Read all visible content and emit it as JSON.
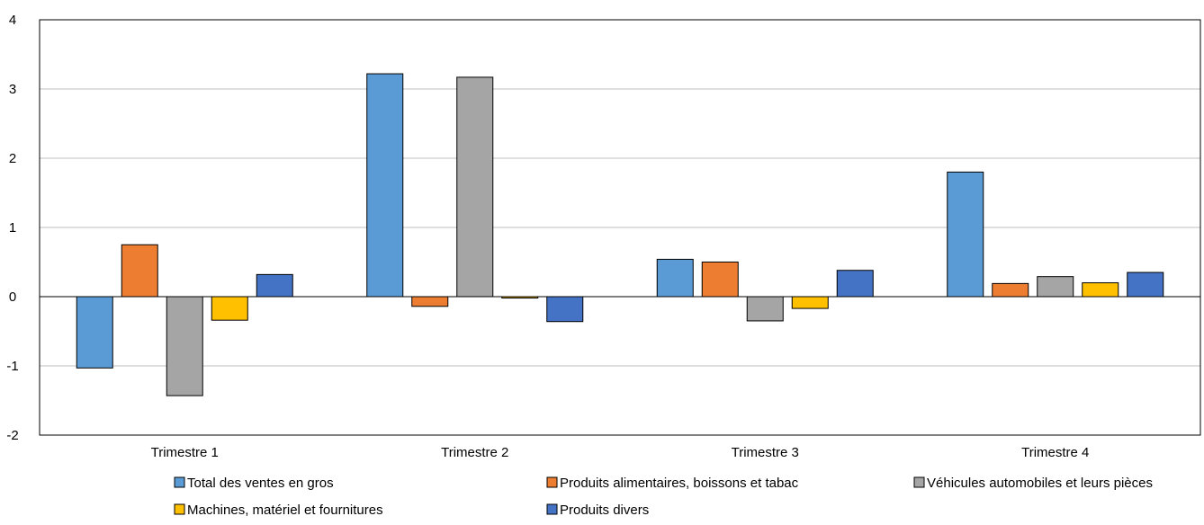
{
  "chart_data": {
    "type": "bar",
    "title": "",
    "xlabel": "",
    "ylabel": "",
    "ylim": [
      -2,
      4
    ],
    "yticks": [
      -2,
      -1,
      0,
      1,
      2,
      3,
      4
    ],
    "grid": true,
    "legend_position": "bottom",
    "categories": [
      "Trimestre 1",
      "Trimestre 2",
      "Trimestre 3",
      "Trimestre 4"
    ],
    "series": [
      {
        "name": "Total des ventes en gros",
        "color": "#5B9BD5",
        "values": [
          -1.03,
          3.22,
          0.54,
          1.8
        ]
      },
      {
        "name": "Produits alimentaires, boissons et tabac",
        "color": "#ED7D31",
        "values": [
          0.75,
          -0.14,
          0.5,
          0.19
        ]
      },
      {
        "name": "Véhicules automobiles et leurs pièces",
        "color": "#A5A5A5",
        "values": [
          -1.43,
          3.17,
          -0.35,
          0.29
        ]
      },
      {
        "name": "Machines, matériel et fournitures",
        "color": "#FFC000",
        "values": [
          -0.34,
          -0.02,
          -0.17,
          0.2
        ]
      },
      {
        "name": "Produits divers",
        "color": "#4472C4",
        "values": [
          0.32,
          -0.36,
          0.38,
          0.35
        ]
      }
    ]
  }
}
